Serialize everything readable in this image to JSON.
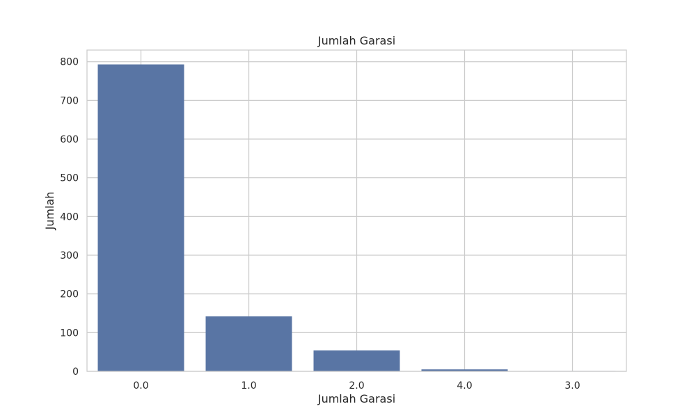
{
  "chart_data": {
    "type": "bar",
    "title": "Jumlah Garasi",
    "xlabel": "Jumlah Garasi",
    "ylabel": "Jumlah",
    "categories": [
      "0.0",
      "1.0",
      "2.0",
      "4.0",
      "3.0"
    ],
    "values": [
      793,
      142,
      54,
      5,
      1
    ],
    "ylim": [
      0,
      830
    ],
    "yticks": [
      0,
      100,
      200,
      300,
      400,
      500,
      600,
      700,
      800
    ],
    "grid": true,
    "bar_color": "#5975a4",
    "grid_color": "#cccccc",
    "axes_edge_color": "#cccccc"
  }
}
